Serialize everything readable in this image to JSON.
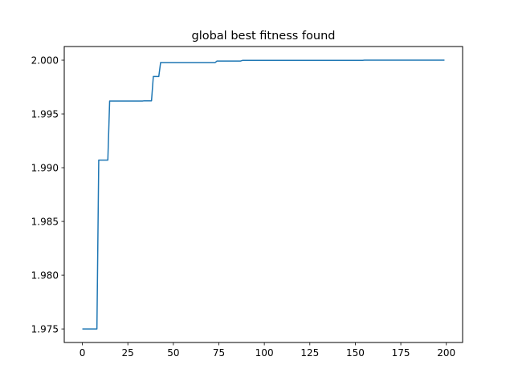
{
  "chart_data": {
    "type": "line",
    "title": "global best fitness found",
    "xlabel": "",
    "ylabel": "",
    "xlim": [
      -9.95,
      208.95
    ],
    "ylim": [
      1.97374,
      2.00127
    ],
    "x_ticks": [
      0,
      25,
      50,
      75,
      100,
      125,
      150,
      175,
      200
    ],
    "x_tick_labels": [
      "0",
      "25",
      "50",
      "75",
      "100",
      "125",
      "150",
      "175",
      "200"
    ],
    "y_ticks": [
      1.975,
      1.98,
      1.985,
      1.99,
      1.995,
      2.0
    ],
    "y_tick_labels": [
      "1.975",
      "1.980",
      "1.985",
      "1.990",
      "1.995",
      "2.000"
    ],
    "grid": false,
    "legend": "none",
    "series": [
      {
        "color": "#1f77b4",
        "x": [
          0,
          8,
          9,
          14,
          15,
          33,
          34,
          38,
          39,
          42,
          43,
          73,
          74,
          87,
          88,
          154,
          155,
          199
        ],
        "y": [
          1.975,
          1.975,
          1.9907,
          1.9907,
          1.9962,
          1.9962,
          1.99622,
          1.99622,
          1.99848,
          1.99848,
          1.99978,
          1.99978,
          1.99992,
          1.99992,
          1.99998,
          1.99998,
          2.0,
          2.0
        ]
      }
    ]
  }
}
